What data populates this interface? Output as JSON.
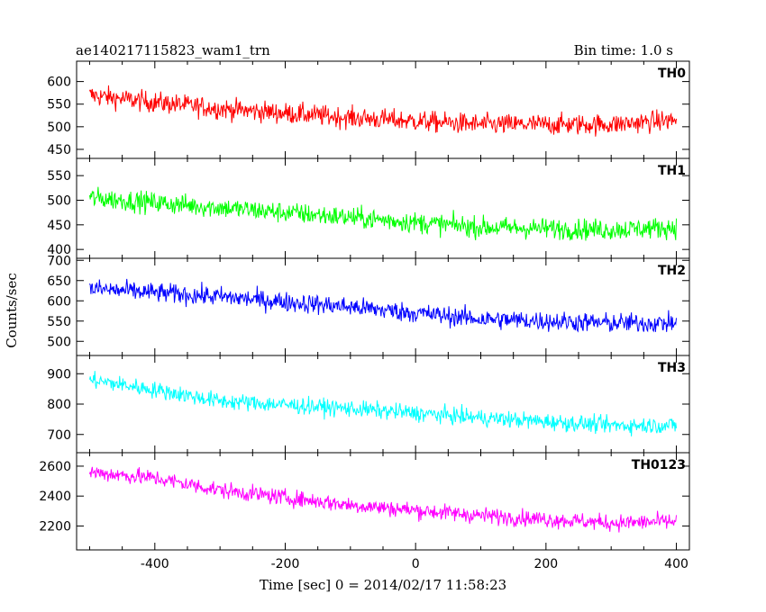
{
  "header": {
    "title": "ae140217115823_wam1_trn",
    "bin_time": "Bin time: 1.0 s"
  },
  "chart_data": {
    "type": "line",
    "title": "ae140217115823_wam1_trn",
    "subtitle": "Bin time: 1.0 s",
    "xlabel": "Time [sec] 0 = 2014/02/17 11:58:23",
    "ylabel": "Counts/sec",
    "xlim": [
      -520,
      420
    ],
    "x_ticks": [
      -400,
      -200,
      0,
      200,
      400
    ],
    "x_range_data": [
      -500,
      400
    ],
    "bin_time_s": 1.0,
    "grid": false,
    "panels": [
      {
        "name": "TH0",
        "color": "#ff0000",
        "ylim": [
          430,
          645
        ],
        "y_ticks": [
          450,
          500,
          550,
          600
        ],
        "trend": [
          [
            -500,
            570
          ],
          [
            -440,
            560
          ],
          [
            -300,
            540
          ],
          [
            -100,
            520
          ],
          [
            100,
            505
          ],
          [
            300,
            505
          ],
          [
            400,
            515
          ]
        ],
        "noise_amplitude": 38
      },
      {
        "name": "TH1",
        "color": "#00ff00",
        "ylim": [
          382,
          585
        ],
        "y_ticks": [
          400,
          450,
          500,
          550
        ],
        "trend": [
          [
            -500,
            505
          ],
          [
            -300,
            485
          ],
          [
            -100,
            465
          ],
          [
            100,
            445
          ],
          [
            300,
            440
          ],
          [
            400,
            445
          ]
        ],
        "noise_amplitude": 35
      },
      {
        "name": "TH2",
        "color": "#0000ff",
        "ylim": [
          465,
          705
        ],
        "y_ticks": [
          500,
          550,
          600,
          650,
          700
        ],
        "trend": [
          [
            -500,
            630
          ],
          [
            -300,
            610
          ],
          [
            -100,
            585
          ],
          [
            100,
            555
          ],
          [
            300,
            545
          ],
          [
            400,
            545
          ]
        ],
        "noise_amplitude": 40
      },
      {
        "name": "TH3",
        "color": "#00ffff",
        "ylim": [
          640,
          960
        ],
        "y_ticks": [
          700,
          800,
          900
        ],
        "trend": [
          [
            -500,
            880
          ],
          [
            -380,
            840
          ],
          [
            -300,
            810
          ],
          [
            -100,
            785
          ],
          [
            100,
            755
          ],
          [
            300,
            730
          ],
          [
            400,
            730
          ]
        ],
        "noise_amplitude": 45
      },
      {
        "name": "TH0123",
        "color": "#ff00ff",
        "ylim": [
          2040,
          2690
        ],
        "y_ticks": [
          2200,
          2400,
          2600
        ],
        "trend": [
          [
            -500,
            2560
          ],
          [
            -400,
            2520
          ],
          [
            -300,
            2440
          ],
          [
            -100,
            2340
          ],
          [
            100,
            2270
          ],
          [
            300,
            2220
          ],
          [
            400,
            2230
          ]
        ],
        "noise_amplitude": 90
      }
    ]
  }
}
